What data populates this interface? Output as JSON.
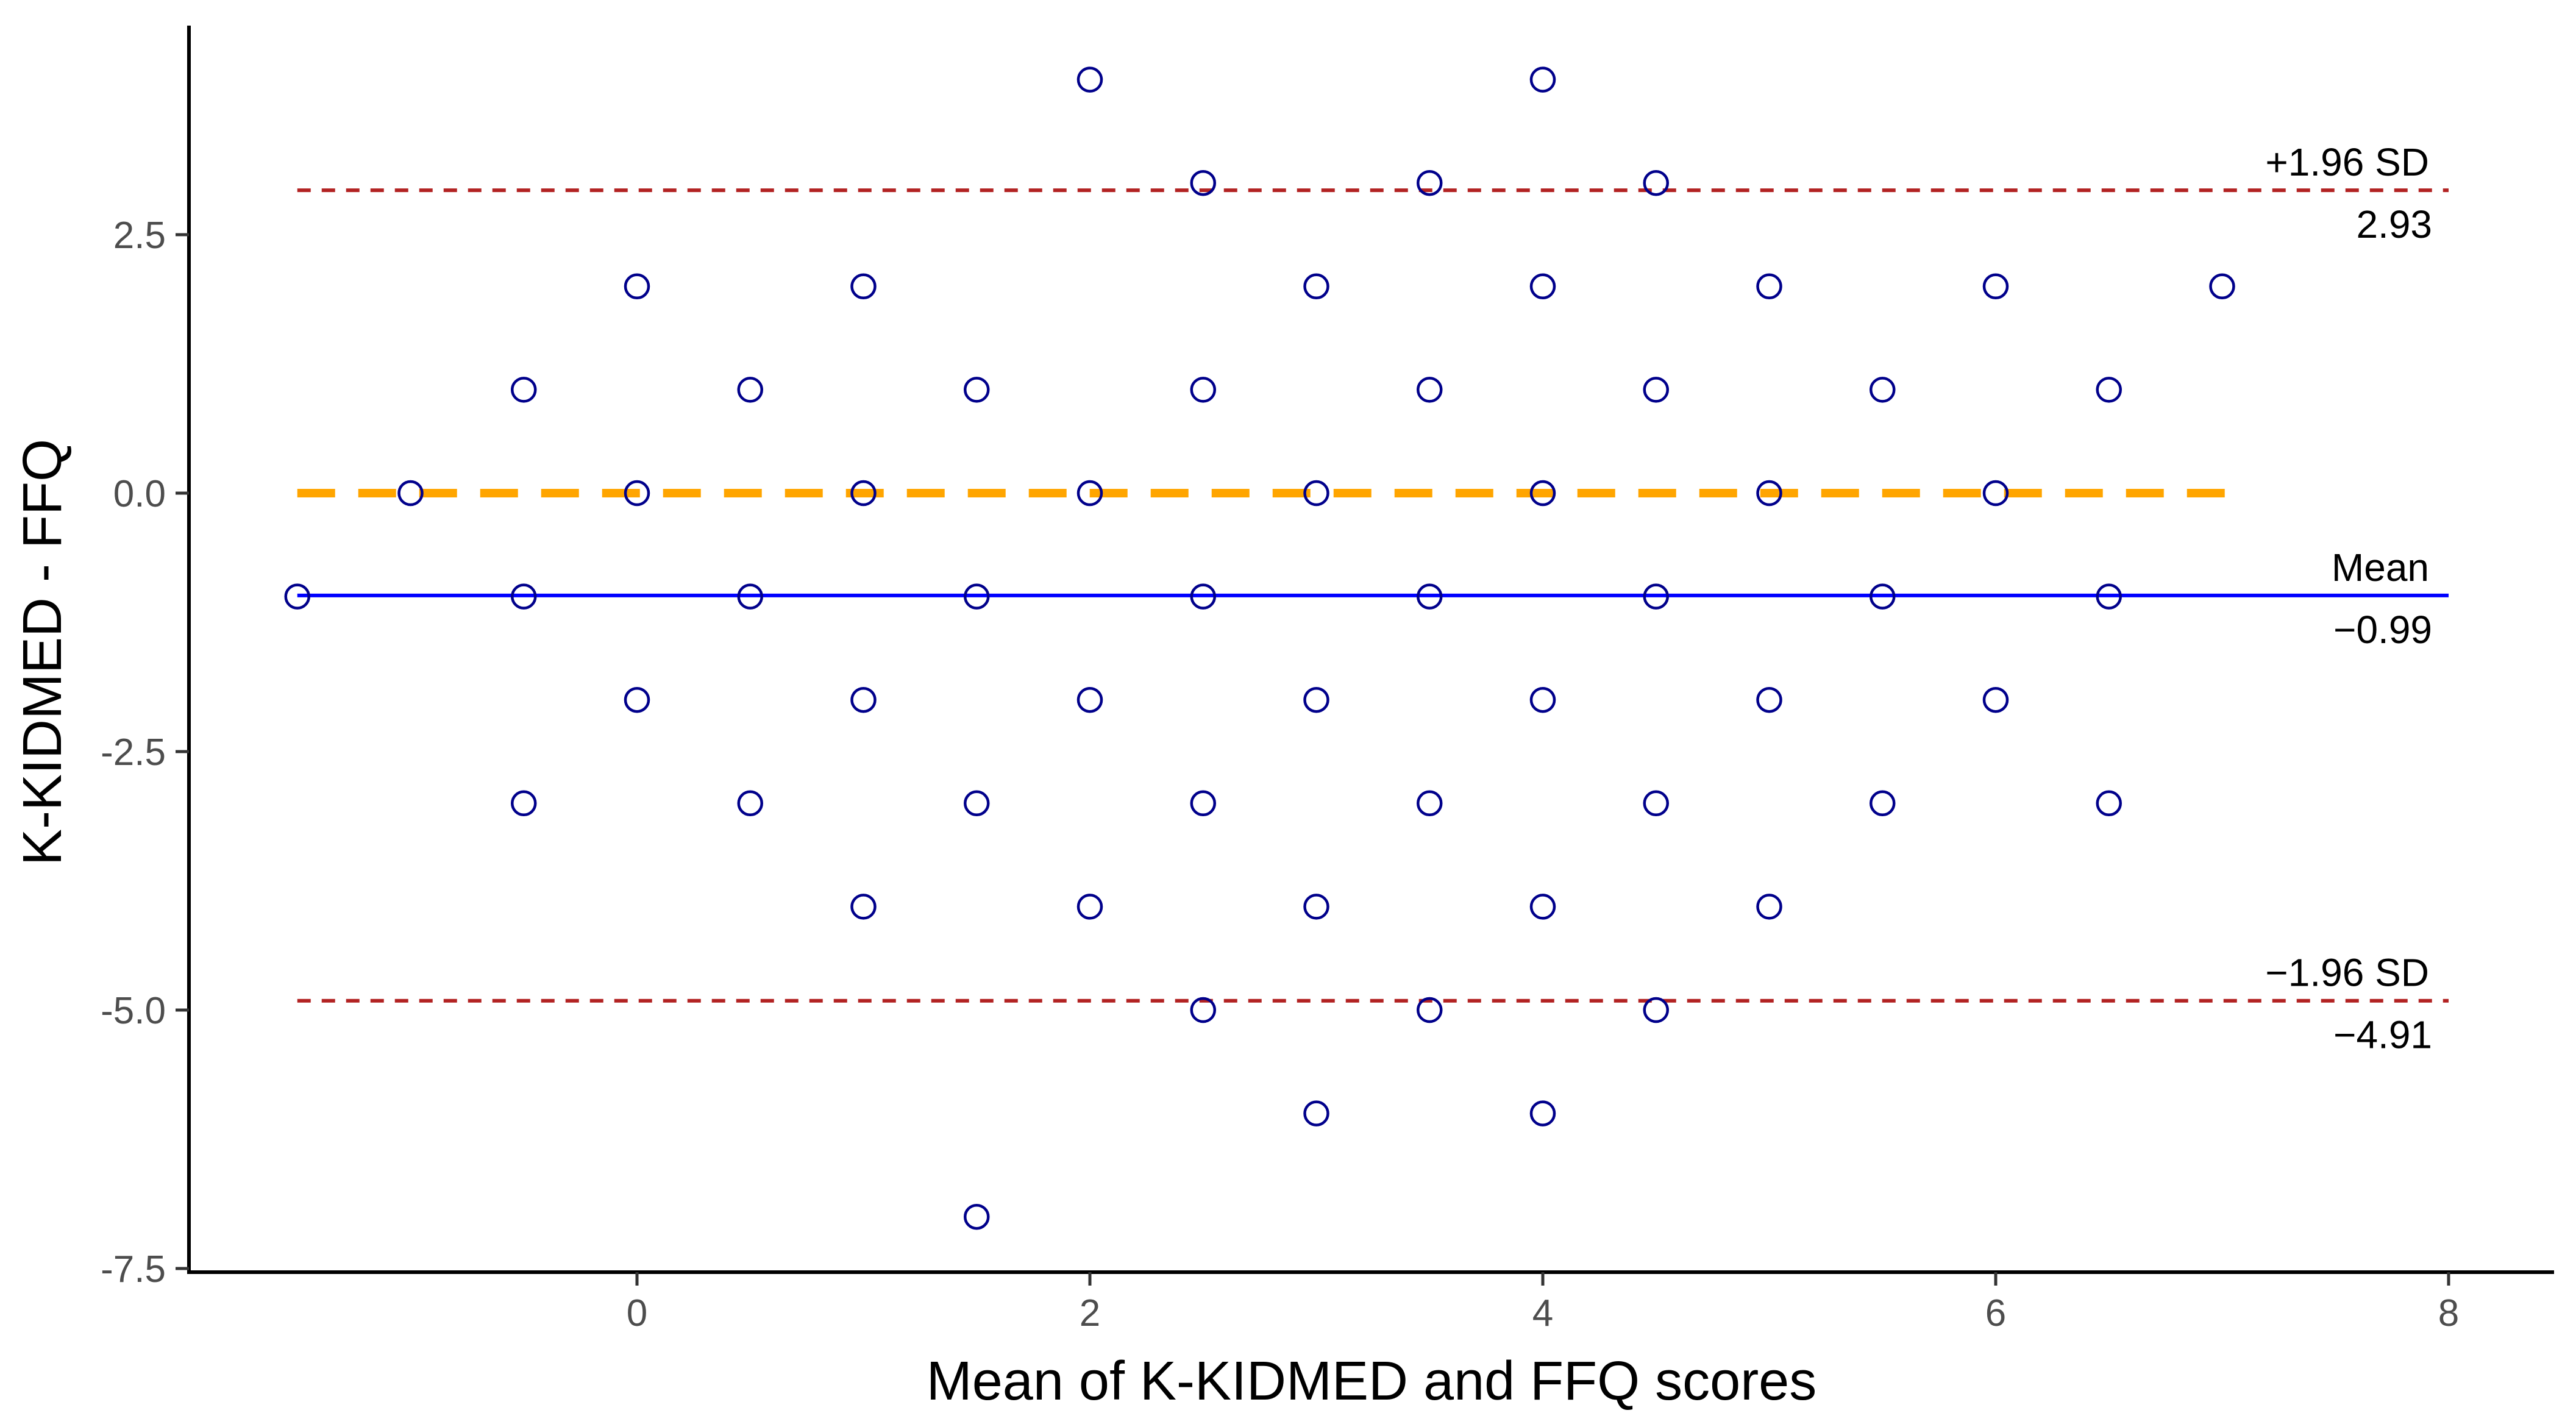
{
  "chart_data": {
    "type": "scatter",
    "title": "",
    "xlabel": "Mean of K-KIDMED and FFQ scores",
    "ylabel": "K-KIDMED - FFQ",
    "xlim": [
      -2,
      8.3
    ],
    "ylim": [
      -7.5,
      4.5
    ],
    "x_ticks": [
      0,
      2,
      4,
      6,
      8
    ],
    "x_tick_labels": [
      "0",
      "2",
      "4",
      "6",
      "8"
    ],
    "y_ticks": [
      2.5,
      0.0,
      -2.5,
      -5.0,
      -7.5
    ],
    "y_tick_labels": [
      "2.5",
      "0.0",
      "-2.5",
      "-5.0",
      "-7.5"
    ],
    "grid": false,
    "point_color": "#00008b",
    "points": [
      {
        "x": 2,
        "y": 4
      },
      {
        "x": 4,
        "y": 4
      },
      {
        "x": 2.5,
        "y": 3
      },
      {
        "x": 3.5,
        "y": 3
      },
      {
        "x": 4.5,
        "y": 3
      },
      {
        "x": 0,
        "y": 2
      },
      {
        "x": 1,
        "y": 2
      },
      {
        "x": 3,
        "y": 2
      },
      {
        "x": 4,
        "y": 2
      },
      {
        "x": 5,
        "y": 2
      },
      {
        "x": 6,
        "y": 2
      },
      {
        "x": 7,
        "y": 2
      },
      {
        "x": -0.5,
        "y": 1
      },
      {
        "x": 0.5,
        "y": 1
      },
      {
        "x": 1.5,
        "y": 1
      },
      {
        "x": 2.5,
        "y": 1
      },
      {
        "x": 3.5,
        "y": 1
      },
      {
        "x": 4.5,
        "y": 1
      },
      {
        "x": 5.5,
        "y": 1
      },
      {
        "x": 6.5,
        "y": 1
      },
      {
        "x": -1,
        "y": 0
      },
      {
        "x": 0,
        "y": 0
      },
      {
        "x": 1,
        "y": 0
      },
      {
        "x": 2,
        "y": 0
      },
      {
        "x": 3,
        "y": 0
      },
      {
        "x": 4,
        "y": 0
      },
      {
        "x": 5,
        "y": 0
      },
      {
        "x": 6,
        "y": 0
      },
      {
        "x": -1.5,
        "y": -1
      },
      {
        "x": -0.5,
        "y": -1
      },
      {
        "x": 0.5,
        "y": -1
      },
      {
        "x": 1.5,
        "y": -1
      },
      {
        "x": 2.5,
        "y": -1
      },
      {
        "x": 3.5,
        "y": -1
      },
      {
        "x": 4.5,
        "y": -1
      },
      {
        "x": 5.5,
        "y": -1
      },
      {
        "x": 6.5,
        "y": -1
      },
      {
        "x": 0,
        "y": -2
      },
      {
        "x": 1,
        "y": -2
      },
      {
        "x": 2,
        "y": -2
      },
      {
        "x": 3,
        "y": -2
      },
      {
        "x": 4,
        "y": -2
      },
      {
        "x": 5,
        "y": -2
      },
      {
        "x": 6,
        "y": -2
      },
      {
        "x": -0.5,
        "y": -3
      },
      {
        "x": 0.5,
        "y": -3
      },
      {
        "x": 1.5,
        "y": -3
      },
      {
        "x": 2.5,
        "y": -3
      },
      {
        "x": 3.5,
        "y": -3
      },
      {
        "x": 4.5,
        "y": -3
      },
      {
        "x": 5.5,
        "y": -3
      },
      {
        "x": 6.5,
        "y": -3
      },
      {
        "x": 1,
        "y": -4
      },
      {
        "x": 2,
        "y": -4
      },
      {
        "x": 3,
        "y": -4
      },
      {
        "x": 4,
        "y": -4
      },
      {
        "x": 5,
        "y": -4
      },
      {
        "x": 2.5,
        "y": -5
      },
      {
        "x": 3.5,
        "y": -5
      },
      {
        "x": 4.5,
        "y": -5
      },
      {
        "x": 3,
        "y": -6
      },
      {
        "x": 4,
        "y": -6
      },
      {
        "x": 1.5,
        "y": -7
      }
    ],
    "reference_lines": [
      {
        "name": "upper-loa",
        "label": "+1.96 SD",
        "value_label": "2.93",
        "y": 2.93,
        "x_start": -1.5,
        "x_end": 8,
        "color": "#b22222",
        "style": "short-dash"
      },
      {
        "name": "mean",
        "label": "Mean",
        "value_label": "−0.99",
        "y": -0.99,
        "x_start": -1.5,
        "x_end": 8,
        "color": "#0000ff",
        "style": "solid"
      },
      {
        "name": "lower-loa",
        "label": "−1.96 SD",
        "value_label": "−4.91",
        "y": -4.91,
        "x_start": -1.5,
        "x_end": 8,
        "color": "#b22222",
        "style": "short-dash"
      },
      {
        "name": "zero",
        "label": "",
        "value_label": "",
        "y": 0,
        "x_start": -1.5,
        "x_end": 7.1,
        "color": "#ffa500",
        "style": "long-dash"
      }
    ]
  }
}
